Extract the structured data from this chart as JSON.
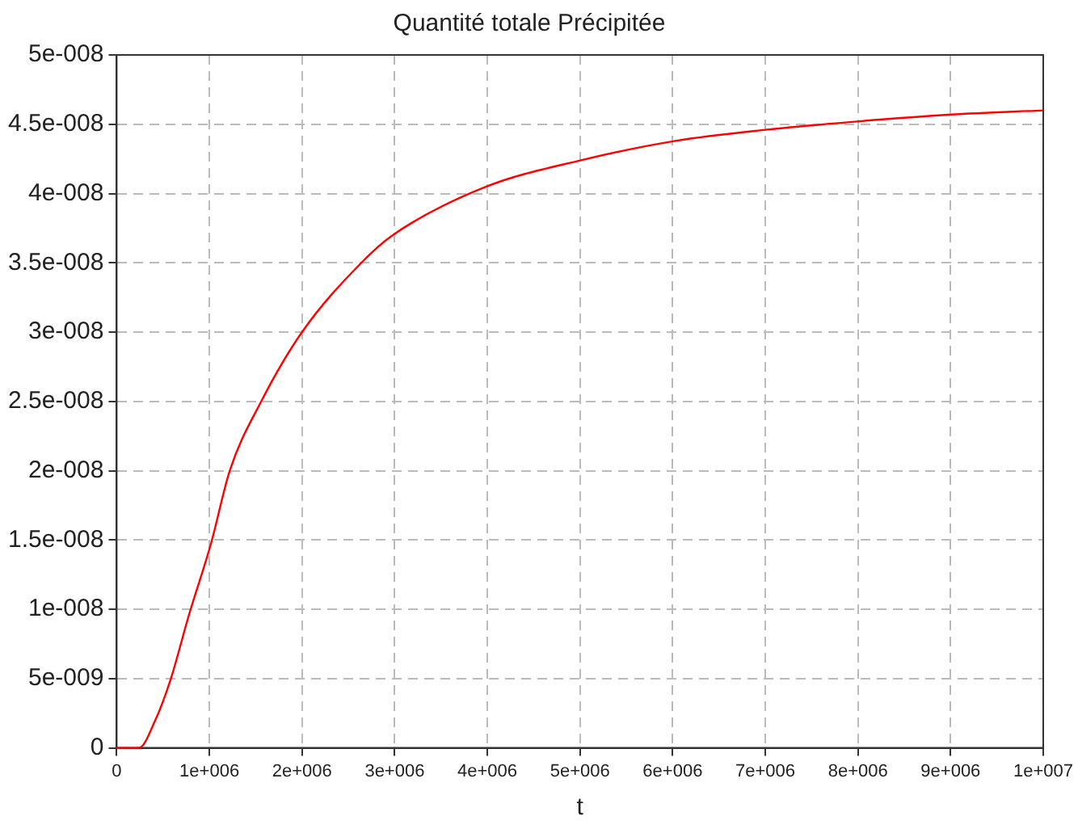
{
  "chart_data": {
    "type": "line",
    "title": "Quantité totale Précipitée",
    "xlabel": "t",
    "x": [
      0,
      240000,
      410000,
      580000,
      780000,
      1020000,
      1220000,
      1560000,
      2000000,
      2640000,
      2980000,
      3990000,
      5010000,
      6030000,
      7000000,
      7990000,
      9000000,
      10000000
    ],
    "series": [
      {
        "color": "#ff0000",
        "values": [
          0,
          0,
          1.9e-09,
          4.9e-09,
          9.6e-09,
          1.48e-08,
          2e-08,
          2.5e-08,
          3e-08,
          3.5e-08,
          3.7e-08,
          4.05e-08,
          4.24e-08,
          4.38e-08,
          4.46e-08,
          4.52e-08,
          4.57e-08,
          4.6e-08
        ]
      }
    ],
    "xlim": [
      0,
      10000000
    ],
    "xticks": [
      0,
      {
        "value": 1000000,
        "label": "1e+006"
      },
      {
        "value": 2000000,
        "label": "2e+006"
      },
      {
        "value": 3000000,
        "label": "3e+006"
      },
      {
        "value": 4000000,
        "label": "4e+006"
      },
      {
        "value": 5000000,
        "label": "5e+006"
      },
      {
        "value": 6000000,
        "label": "6e+006"
      },
      {
        "value": 7000000,
        "label": "7e+006"
      },
      {
        "value": 8000000,
        "label": "8e+006"
      },
      {
        "value": 9000000,
        "label": "9e+006"
      },
      {
        "value": 10000000,
        "label": "1e+007"
      }
    ],
    "ylim": [
      0,
      5e-08
    ],
    "yticks": [
      0,
      {
        "value": 5e-09,
        "label": "5e-009"
      },
      {
        "value": 1e-08,
        "label": "1e-008"
      },
      {
        "value": 1.5e-08,
        "label": "1.5e-008"
      },
      {
        "value": 2e-08,
        "label": "2e-008"
      },
      {
        "value": 2.5e-08,
        "label": "2.5e-008"
      },
      {
        "value": 3e-08,
        "label": "3e-008"
      },
      {
        "value": 3.5e-08,
        "label": "3.5e-008"
      },
      {
        "value": 4e-08,
        "label": "4e-008"
      },
      {
        "value": 4.5e-08,
        "label": "4.5e-008"
      },
      {
        "value": 5e-08,
        "label": "5e-008"
      }
    ],
    "grid": true,
    "legend": false,
    "marker": "none",
    "line_style": "solid"
  }
}
